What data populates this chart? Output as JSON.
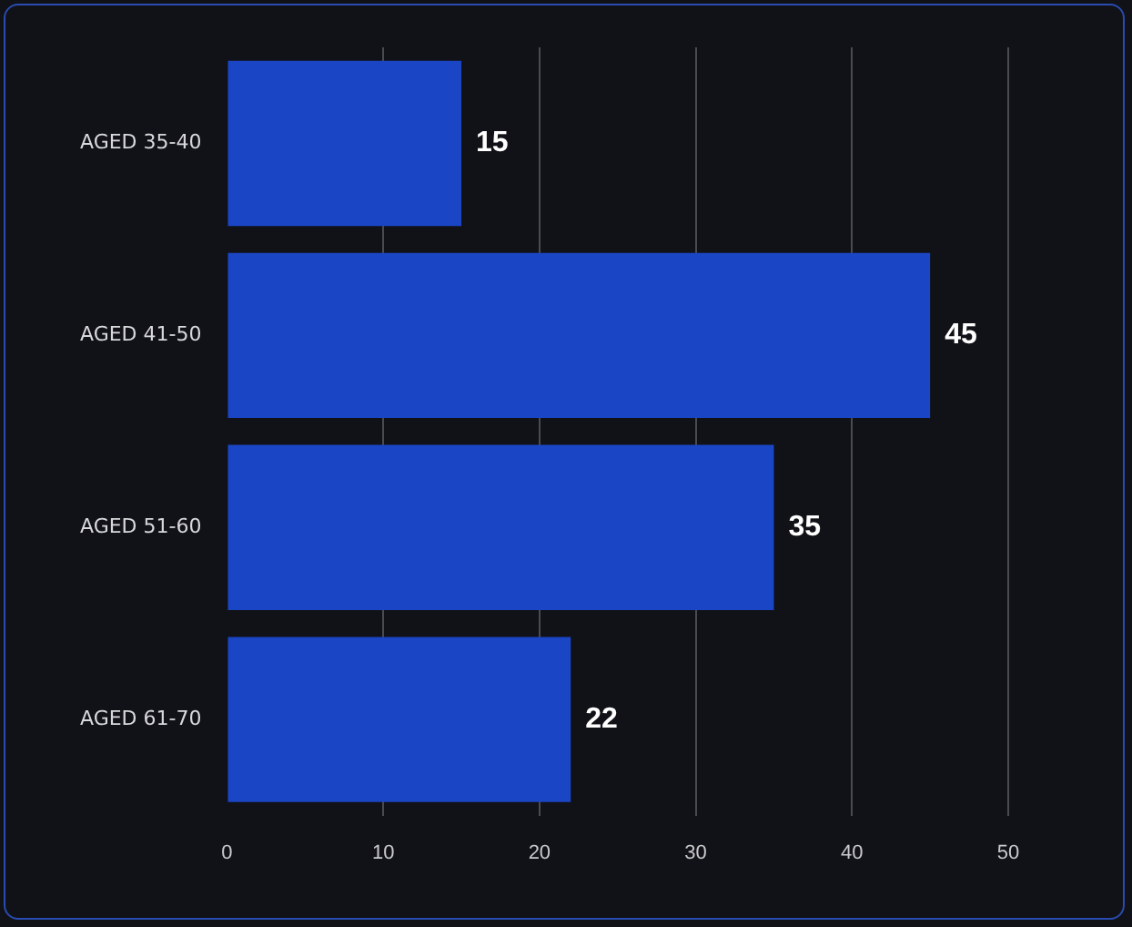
{
  "chart_data": {
    "type": "bar",
    "orientation": "horizontal",
    "categories": [
      "AGED 35-40",
      "AGED 41-50",
      "AGED 51-60",
      "AGED 61-70"
    ],
    "values": [
      15,
      45,
      35,
      22
    ],
    "color": "#1a45c4",
    "xlim": [
      0,
      50
    ],
    "xticks": [
      0,
      10,
      20,
      30,
      40,
      50
    ],
    "grid": "x",
    "data_labels": true,
    "legend": false
  }
}
